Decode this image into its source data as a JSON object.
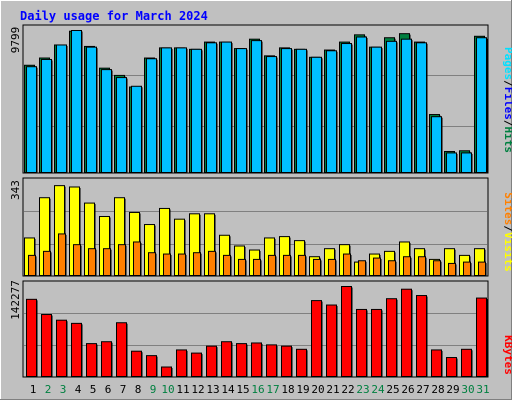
{
  "colors": {
    "background": "#c0c0c0",
    "panel": "#c0c0c0",
    "grid": "#808080",
    "hits": "#008040",
    "files": "#00c0ff",
    "pages": "#00e0ff",
    "sites": "#ff8000",
    "visits": "#ffff00",
    "kbytes": "#ff0000",
    "title": "#0000ff",
    "weekday_label": "#000000",
    "weekend_label": "#008040"
  },
  "chart_data": {
    "type": "bar",
    "title": "Daily usage for March 2024",
    "categories": [
      "1",
      "2",
      "3",
      "4",
      "5",
      "6",
      "7",
      "8",
      "9",
      "10",
      "11",
      "12",
      "13",
      "14",
      "15",
      "16",
      "17",
      "18",
      "19",
      "20",
      "21",
      "22",
      "23",
      "24",
      "25",
      "26",
      "27",
      "28",
      "29",
      "30",
      "31"
    ],
    "weekend_days": [
      "2",
      "3",
      "9",
      "10",
      "16",
      "17",
      "23",
      "24",
      "30",
      "31"
    ],
    "panels": [
      {
        "id": "hits-files-pages",
        "y_max_label": "9799",
        "y_max": 9799,
        "legend": [
          "Pages",
          "/",
          "Files",
          "/",
          "Hits"
        ],
        "legend_colors": [
          "#00e0ff",
          "#000000",
          "#0000ff",
          "#000000",
          "#008040"
        ],
        "series": [
          {
            "name": "Hits",
            "values": [
              7400,
              7900,
              8800,
              9750,
              8700,
              7200,
              6700,
              5900,
              7900,
              8600,
              8600,
              8500,
              9000,
              9000,
              8550,
              9200,
              8050,
              8600,
              8500,
              7950,
              8450,
              9000,
              9500,
              8650,
              9300,
              9580,
              9000,
              4000,
              1450,
              1500,
              9400
            ]
          },
          {
            "name": "Files",
            "values": [
              7300,
              7800,
              8800,
              9799,
              8650,
              7100,
              6550,
              5950,
              7850,
              8600,
              8600,
              8500,
              8950,
              9000,
              8550,
              9100,
              8000,
              8550,
              8500,
              7950,
              8400,
              8900,
              9350,
              8650,
              9050,
              9200,
              8950,
              3850,
              1350,
              1350,
              9300
            ]
          }
        ]
      },
      {
        "id": "sites-visits",
        "y_max_label": "343",
        "y_max": 343,
        "legend": [
          "Sites",
          "/",
          "Visits"
        ],
        "legend_colors": [
          "#ff8000",
          "#000000",
          "#ffff00"
        ],
        "series": [
          {
            "name": "Visits",
            "values": [
              140,
              290,
              335,
              330,
              270,
              220,
              290,
              235,
              190,
              250,
              210,
              230,
              230,
              150,
              110,
              95,
              140,
              145,
              130,
              70,
              100,
              115,
              50,
              80,
              90,
              125,
              100,
              60,
              100,
              75,
              100
            ]
          },
          {
            "name": "Sites",
            "values": [
              75,
              90,
              155,
              115,
              100,
              100,
              115,
              125,
              85,
              80,
              80,
              85,
              90,
              75,
              60,
              60,
              75,
              75,
              75,
              60,
              60,
              80,
              55,
              65,
              55,
              70,
              70,
              55,
              45,
              50,
              50
            ]
          }
        ]
      },
      {
        "id": "kbytes",
        "y_max_label": "142277",
        "y_max": 142277,
        "legend": [
          "KBytes"
        ],
        "legend_colors": [
          "#ff0000"
        ],
        "series": [
          {
            "name": "KBytes",
            "values": [
              122000,
              98000,
              89000,
              84000,
              52000,
              55000,
              85000,
              40000,
              33000,
              15000,
              42000,
              37000,
              48000,
              55000,
              52000,
              53000,
              50000,
              48000,
              43000,
              120000,
              113000,
              142277,
              106000,
              106000,
              123000,
              138000,
              128000,
              42000,
              30000,
              43000,
              124000
            ]
          }
        ]
      }
    ]
  }
}
